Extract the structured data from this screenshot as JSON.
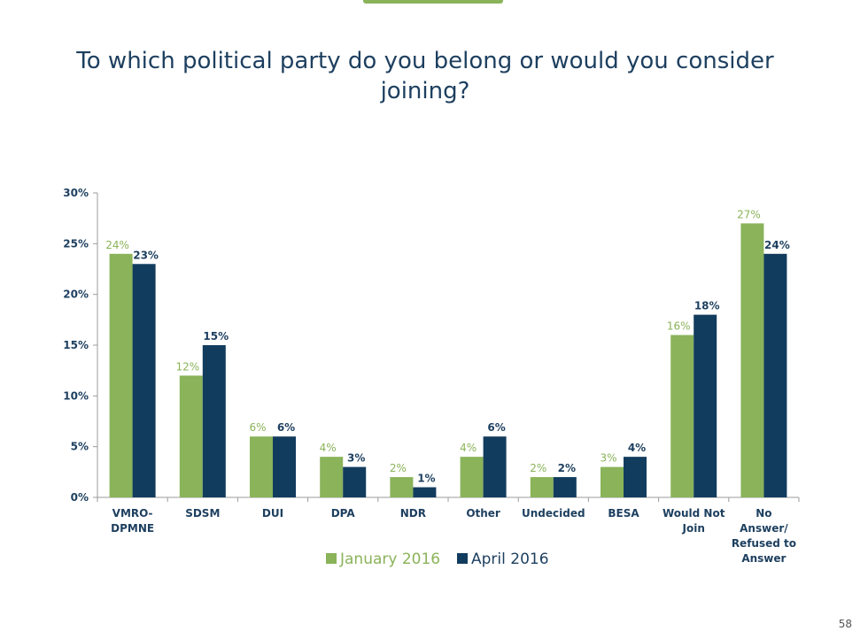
{
  "page": {
    "title": "To which political party do you belong or would you consider joining?",
    "page_number": "58"
  },
  "colors": {
    "january": "#8ab35a",
    "april": "#123c5e",
    "axis": "#9b9b9b",
    "text": "#1d3f5f"
  },
  "chart_data": {
    "type": "bar",
    "title": "To which political party do you belong or would you consider joining?",
    "categories": [
      [
        "VMRO-",
        "DPMNE"
      ],
      [
        "SDSM"
      ],
      [
        "DUI"
      ],
      [
        "DPA"
      ],
      [
        "NDR"
      ],
      [
        "Other"
      ],
      [
        "Undecided"
      ],
      [
        "BESA"
      ],
      [
        "Would Not",
        "Join"
      ],
      [
        "No",
        "Answer/",
        "Refused to",
        "Answer"
      ]
    ],
    "series": [
      {
        "name": "January 2016",
        "values": [
          24,
          12,
          6,
          4,
          2,
          4,
          2,
          3,
          16,
          27
        ],
        "labels": [
          "24%",
          "12%",
          "6%",
          "4%",
          "2%",
          "4%",
          "2%",
          "3%",
          "16%",
          "27%"
        ]
      },
      {
        "name": "April 2016",
        "values": [
          23,
          15,
          6,
          3,
          1,
          6,
          2,
          4,
          18,
          24
        ],
        "labels": [
          "23%",
          "15%",
          "6%",
          "3%",
          "1%",
          "6%",
          "2%",
          "4%",
          "18%",
          "24%"
        ]
      }
    ],
    "ylim": [
      0,
      30
    ],
    "yticks": [
      0,
      5,
      10,
      15,
      20,
      25,
      30
    ],
    "ytick_labels": [
      "0%",
      "5%",
      "10%",
      "15%",
      "20%",
      "25%",
      "30%"
    ],
    "xlabel": "",
    "ylabel": "",
    "legend": "bottom-center",
    "grid": false
  }
}
